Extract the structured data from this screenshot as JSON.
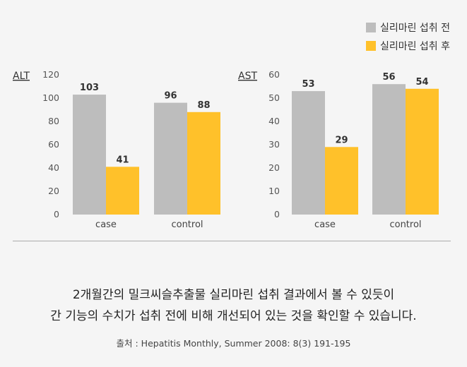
{
  "legend": {
    "before": {
      "label": "실리마린 섭취 전",
      "color": "#bdbdbd"
    },
    "after": {
      "label": "실리마린 섭취 후",
      "color": "#ffc12a"
    }
  },
  "chart_data": [
    {
      "type": "bar",
      "title": "ALT",
      "categories": [
        "case",
        "control"
      ],
      "series": [
        {
          "name": "실리마린 섭취 전",
          "values": [
            103,
            96
          ]
        },
        {
          "name": "실리마린 섭취 후",
          "values": [
            41,
            88
          ]
        }
      ],
      "yticks": [
        "0",
        "20",
        "40",
        "60",
        "80",
        "100",
        "120"
      ],
      "ylim": [
        0,
        120
      ]
    },
    {
      "type": "bar",
      "title": "AST",
      "categories": [
        "case",
        "control"
      ],
      "series": [
        {
          "name": "실리마린 섭취 전",
          "values": [
            53,
            56
          ]
        },
        {
          "name": "실리마린 섭취 후",
          "values": [
            29,
            54
          ]
        }
      ],
      "yticks": [
        "0",
        "10",
        "20",
        "30",
        "40",
        "50",
        "60"
      ],
      "ylim": [
        0,
        60
      ]
    }
  ],
  "caption": {
    "line1": "2개월간의 밀크씨슬추출물 실리마린 섭취 결과에서 볼 수 있듯이",
    "line2": "간 기능의 수치가 섭취 전에 비해 개선되어 있는 것을 확인할 수 있습니다."
  },
  "source": "출처 : Hepatitis Monthly, Summer 2008: 8(3) 191-195"
}
